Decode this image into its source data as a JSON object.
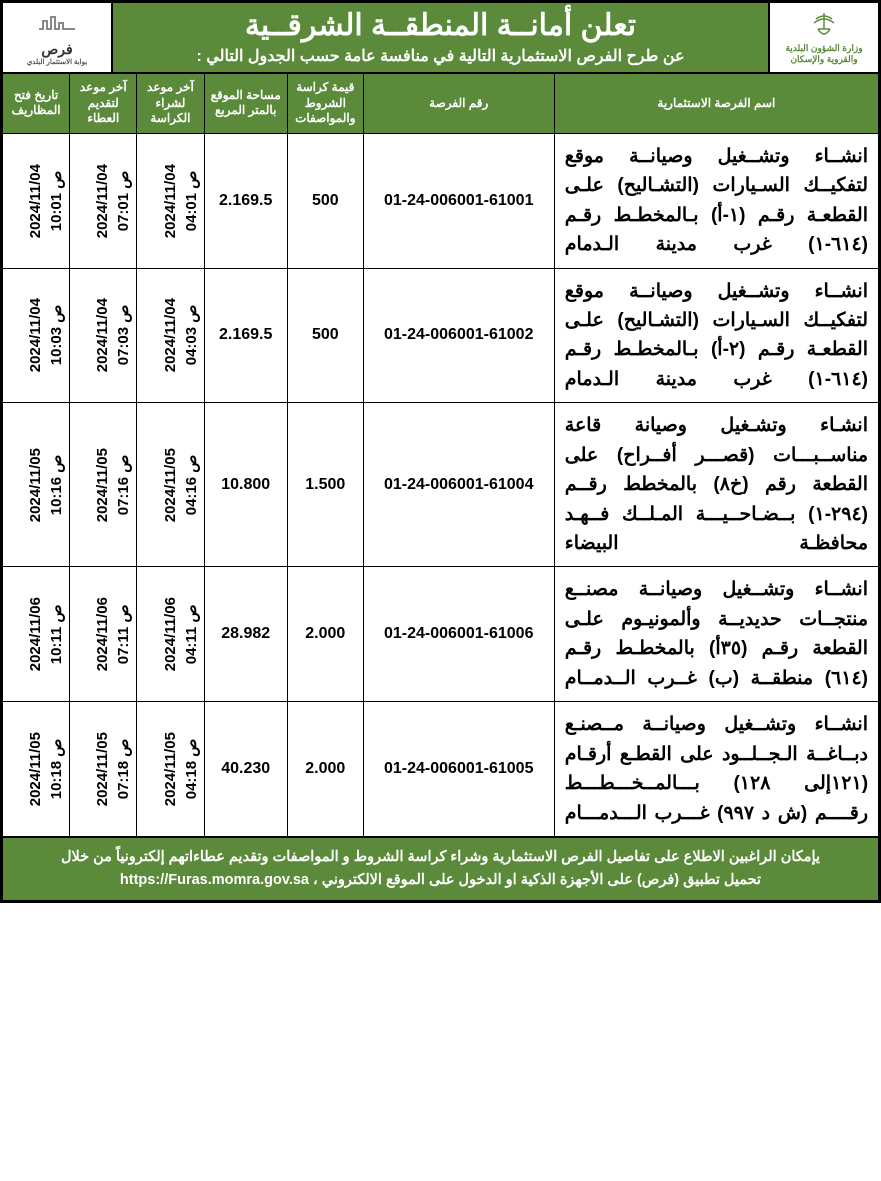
{
  "colors": {
    "green": "#5a8a3a",
    "border": "#000000",
    "white": "#ffffff"
  },
  "header": {
    "logo_right_line1": "وزارة الشؤون البلدية",
    "logo_right_line2": "والقروية والإسكان",
    "logo_left_line1": "فرص",
    "logo_left_line2": "بوابة الاستثمار البلدي",
    "title": "تعلن أمانــة المنطقــة الشرقــية",
    "subtitle": "عن طرح الفرص الاستثمارية التالية في منافسة عامة حسب الجدول التالي :"
  },
  "columns": [
    "اسم الفرصة الاستثمارية",
    "رقم الفرصة",
    "قيمة كراسة\nالشروط والمواصفات",
    "مساحة الموقع\nبالمتر المربع",
    "آخر موعد\nلشراء الكراسة",
    "آخر موعد\nلتقديم العطاء",
    "تاريخ فتح\nالمظاريف"
  ],
  "rows": [
    {
      "desc": "انشــاء وتشــغيل وصيانــة موقع لتفكيــك السـيارات (التشـاليح) علـى القطعـة رقـم (١-أ) بـالمخطـط رقـم (٦١٤-١) غرب مدينة الـدمام",
      "opp_no": "01-24-006001-61001",
      "price": "500",
      "area": "2.169.5",
      "d_buy": "2024/11/04\nص 04:01",
      "d_bid": "2024/11/04\nص 07:01",
      "d_open": "2024/11/04\nص 10:01"
    },
    {
      "desc": "انشــاء وتشــغيل وصيانــة موقع لتفكيــك السـيارات (التشـاليح) علـى القطعـة رقـم (٢-أ) بـالمخطـط رقـم (٦١٤-١) غرب مدينة الـدمام",
      "opp_no": "01-24-006001-61002",
      "price": "500",
      "area": "2.169.5",
      "d_buy": "2024/11/04\nص 04:03",
      "d_bid": "2024/11/04\nص 07:03",
      "d_open": "2024/11/04\nص 10:03"
    },
    {
      "desc": "انشـاء وتشـغيل وصيانة قاعة مناســبـــات (قصـــر أفــراح) على القطعة رقم (خ٨) بالمخطط رقــم (٢٩٤-١) بــضـاحــيـــة المـلــك فــهـد محافظـة البيضاء",
      "opp_no": "01-24-006001-61004",
      "price": "1.500",
      "area": "10.800",
      "d_buy": "2024/11/05\nص 04:16",
      "d_bid": "2024/11/05\nص 07:16",
      "d_open": "2024/11/05\nص 10:16"
    },
    {
      "desc": "انشــاء وتشــغيل وصيانــة مصنــع منتجــات حديديــة وألمونيـوم علـى القطعة رقـم (٣٥أ) بالمخطـط رقـم (٦١٤) منطقــة (ب) غــرب الــدمــام",
      "opp_no": "01-24-006001-61006",
      "price": "2.000",
      "area": "28.982",
      "d_buy": "2024/11/06\nص 04:11",
      "d_bid": "2024/11/06\nص 07:11",
      "d_open": "2024/11/06\nص 10:11"
    },
    {
      "desc": "انشــاء وتشــغيل وصيانــة مــصنـع دبــاغــة الـجــلــود على القطـع أرقـام (١٢١إلى ١٢٨) بـــالمــخـــطـــط رقــــم (ش د ٩٩٧) غـــرب الـــدمـــام",
      "opp_no": "01-24-006001-61005",
      "price": "2.000",
      "area": "40.230",
      "d_buy": "2024/11/05\nص 04:18",
      "d_bid": "2024/11/05\nص 07:18",
      "d_open": "2024/11/05\nص 10:18"
    }
  ],
  "footer": {
    "line1": "يإمكان الراغبين الاطلاع على تفاصيل الفرص الاستثمارية وشراء كراسة الشروط و المواصفات وتقديم عطاءاتهم إلكترونياً من خلال",
    "line2_pre": "تحميل تطبيق (فرص) على الأجهزة الذكية او الدخول على الموقع الالكتروني ،",
    "url": "https://Furas.momra.gov.sa"
  }
}
